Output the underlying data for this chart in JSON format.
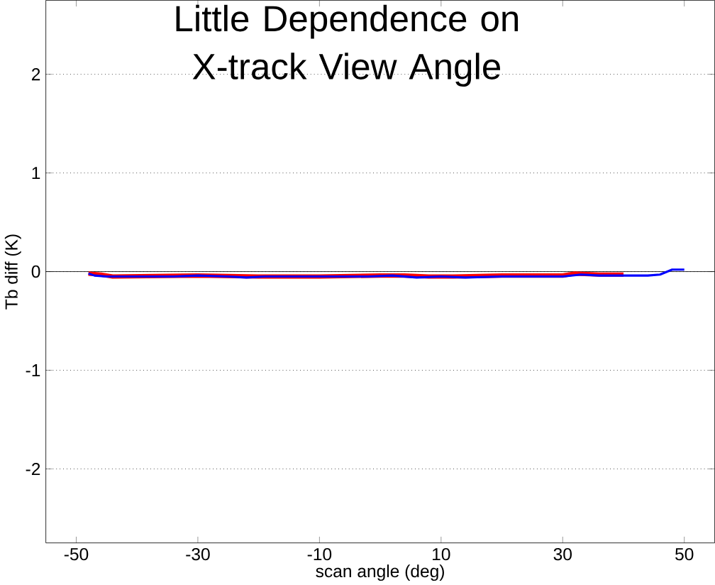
{
  "chart_data": {
    "type": "line",
    "title": "Little Dependence on X-track View Angle",
    "xlabel": "scan angle (deg)",
    "ylabel": "Tb diff (K)",
    "xlim": [
      -55,
      55
    ],
    "ylim": [
      -2.75,
      2.75
    ],
    "xticks": [
      -50,
      -30,
      -10,
      10,
      30,
      50
    ],
    "yticks": [
      -2,
      -1,
      0,
      1,
      2
    ],
    "grid": "y",
    "ref_lines": [
      {
        "axis": "y",
        "value": 0,
        "color": "#000000"
      }
    ],
    "series": [
      {
        "color": "#ff0000",
        "x": [
          -48,
          -46,
          -44,
          -30,
          -20,
          -10,
          0,
          4,
          8,
          12,
          20,
          30,
          32,
          36,
          40
        ],
        "values": [
          -0.02,
          -0.03,
          -0.05,
          -0.04,
          -0.05,
          -0.05,
          -0.04,
          -0.04,
          -0.05,
          -0.05,
          -0.04,
          -0.04,
          -0.02,
          -0.03,
          -0.03
        ]
      },
      {
        "color": "#0000ff",
        "x": [
          -48,
          -47,
          -45,
          -40,
          -34,
          -30,
          -25,
          -22,
          -19,
          -17,
          -10,
          -2,
          2,
          6,
          10,
          14,
          20,
          30,
          33,
          36,
          40,
          44,
          46,
          48,
          50
        ],
        "values": [
          -0.02,
          -0.04,
          -0.05,
          -0.05,
          -0.05,
          -0.04,
          -0.05,
          -0.06,
          -0.05,
          -0.05,
          -0.05,
          -0.05,
          -0.04,
          -0.06,
          -0.05,
          -0.06,
          -0.05,
          -0.05,
          -0.03,
          -0.04,
          -0.04,
          -0.04,
          -0.03,
          0.02,
          0.02
        ]
      }
    ]
  }
}
